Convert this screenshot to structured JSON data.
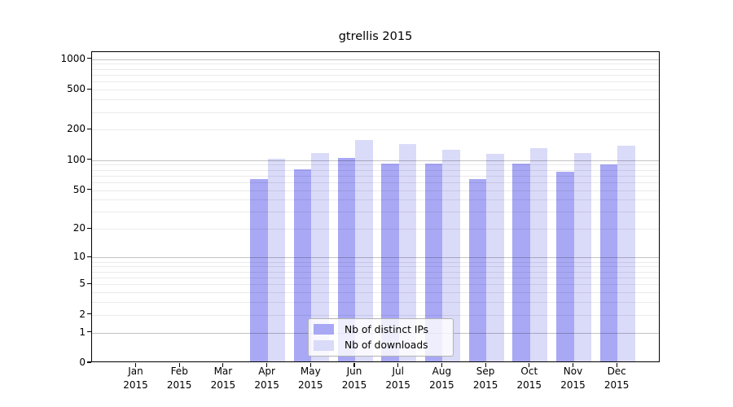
{
  "title": "gtrellis 2015",
  "legend": {
    "items": [
      {
        "key": "distinct_ips",
        "label": "Nb of distinct IPs"
      },
      {
        "key": "downloads",
        "label": "Nb of downloads"
      }
    ]
  },
  "colors": {
    "distinct_ips": "#a8a8f5",
    "downloads": "#dadaf9",
    "axis": "#000000",
    "grid_major": "rgba(0,0,0,0.235)",
    "grid_minor": "rgba(0,0,0,0.08)",
    "legend_border": "#b3b3b3",
    "text": "#000000",
    "background": "#ffffff"
  },
  "x_axis": {
    "months": [
      "Jan",
      "Feb",
      "Mar",
      "Apr",
      "May",
      "Jun",
      "Jul",
      "Aug",
      "Sep",
      "Oct",
      "Nov",
      "Dec"
    ],
    "year": "2015"
  },
  "y_axis": {
    "tick_labels": [
      "0",
      "1",
      "2",
      "5",
      "10",
      "20",
      "50",
      "100",
      "200",
      "500",
      "1000"
    ]
  },
  "chart_data": {
    "type": "bar",
    "title": "gtrellis 2015",
    "categories": [
      "Jan 2015",
      "Feb 2015",
      "Mar 2015",
      "Apr 2015",
      "May 2015",
      "Jun 2015",
      "Jul 2015",
      "Aug 2015",
      "Sep 2015",
      "Oct 2015",
      "Nov 2015",
      "Dec 2015"
    ],
    "series": [
      {
        "name": "Nb of distinct IPs",
        "color_key": "distinct_ips",
        "values": [
          0,
          0,
          0,
          65,
          81,
          106,
          93,
          92,
          65,
          93,
          76,
          91
        ]
      },
      {
        "name": "Nb of downloads",
        "color_key": "downloads",
        "values": [
          0,
          0,
          0,
          103,
          118,
          159,
          144,
          126,
          116,
          132,
          118,
          138
        ]
      }
    ],
    "y_ticks": [
      0,
      1,
      2,
      5,
      10,
      20,
      50,
      100,
      200,
      500,
      1000
    ],
    "y_scale": "log10(value+1)",
    "ylim": [
      0,
      1175
    ],
    "xlabel": "",
    "ylabel": "",
    "grid": "horizontal-major-and-minor",
    "legend_position": "lower-center"
  }
}
